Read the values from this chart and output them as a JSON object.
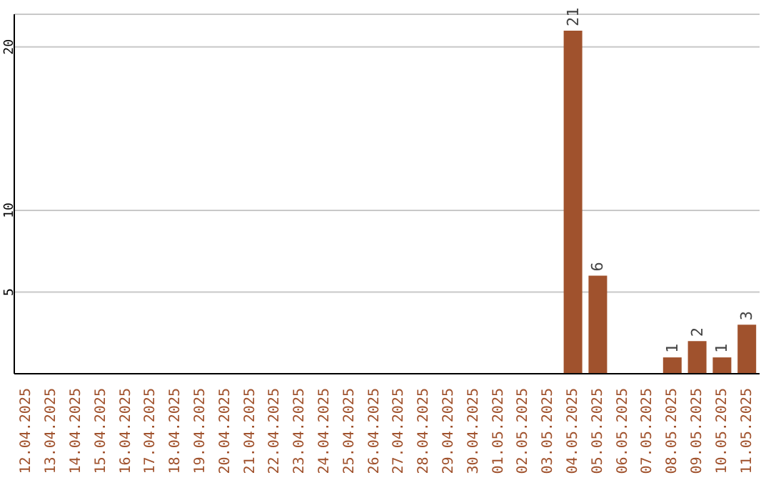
{
  "chart_data": {
    "type": "bar",
    "categories": [
      "12.04.2025",
      "13.04.2025",
      "14.04.2025",
      "15.04.2025",
      "16.04.2025",
      "17.04.2025",
      "18.04.2025",
      "19.04.2025",
      "20.04.2025",
      "21.04.2025",
      "22.04.2025",
      "23.04.2025",
      "24.04.2025",
      "25.04.2025",
      "26.04.2025",
      "27.04.2025",
      "28.04.2025",
      "29.04.2025",
      "30.04.2025",
      "01.05.2025",
      "02.05.2025",
      "03.05.2025",
      "04.05.2025",
      "05.05.2025",
      "06.05.2025",
      "07.05.2025",
      "08.05.2025",
      "09.05.2025",
      "10.05.2025",
      "11.05.2025"
    ],
    "values": [
      null,
      null,
      null,
      null,
      null,
      null,
      null,
      null,
      null,
      null,
      null,
      null,
      null,
      null,
      null,
      null,
      null,
      null,
      null,
      null,
      null,
      null,
      21,
      6,
      null,
      null,
      1,
      2,
      1,
      3
    ],
    "color": "#a0522d",
    "ylim": [
      0,
      22
    ],
    "yticks": [
      5,
      10,
      20
    ],
    "grid": "y",
    "data_labels": true
  }
}
